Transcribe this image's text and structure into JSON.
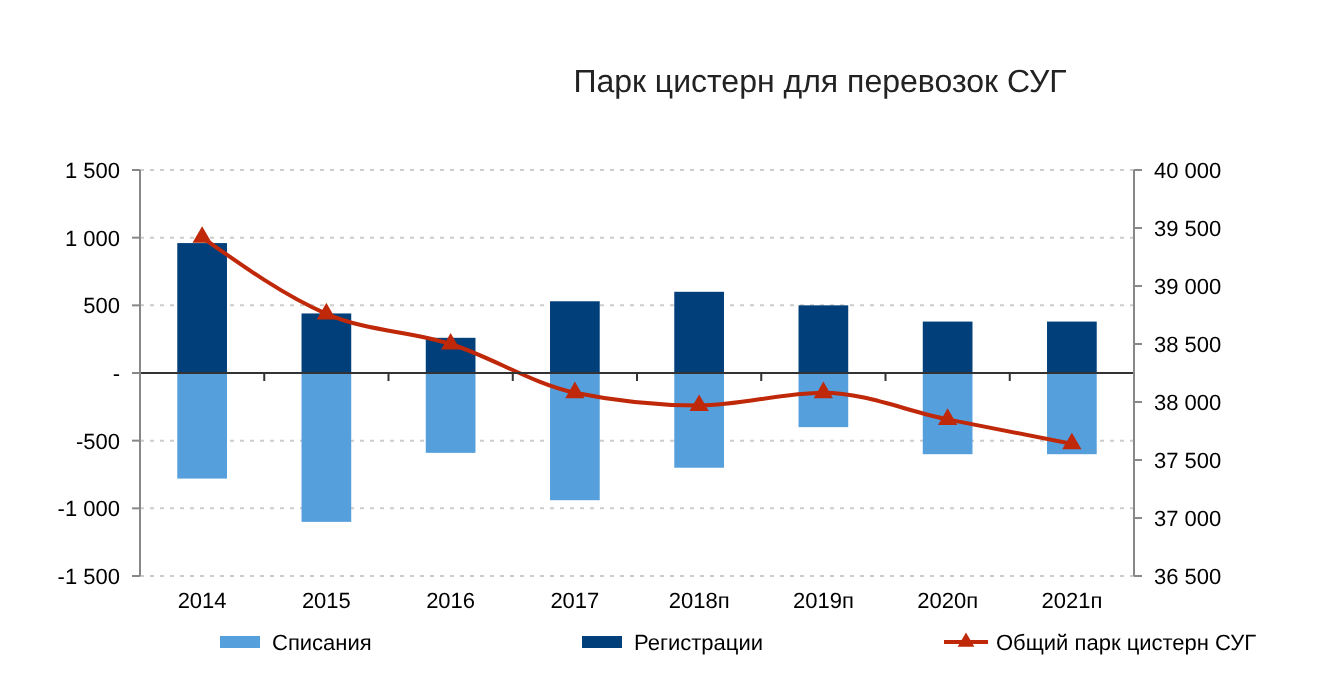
{
  "chart_data": {
    "type": "bar",
    "title": "Парк цистерн для перевозок СУГ",
    "stacked": true,
    "categories": [
      "2014",
      "2015",
      "2016",
      "2017",
      "2018п",
      "2019п",
      "2020п",
      "2021п"
    ],
    "series": [
      {
        "name": "Списания",
        "color": "#559fdc",
        "values": [
          -780,
          -1100,
          -590,
          -940,
          -700,
          -400,
          -600,
          -600
        ]
      },
      {
        "name": "Регистрации",
        "color": "#003f7a",
        "values": [
          960,
          440,
          260,
          530,
          600,
          500,
          380,
          380
        ]
      },
      {
        "name": "Общий парк цистерн СУГ",
        "type": "line",
        "axis": "y2",
        "color": "#c0280a",
        "marker": "triangle",
        "values": [
          39420,
          38760,
          38500,
          38080,
          37970,
          38080,
          37850,
          37640
        ]
      }
    ],
    "ylim": [
      -1500,
      1500
    ],
    "yticks": [
      {
        "value": -1500,
        "label": "-1 500"
      },
      {
        "value": -1000,
        "label": "-1 000"
      },
      -500,
      {
        "value": 0,
        "label": "-"
      },
      500,
      {
        "value": 1000,
        "label": "1 000"
      },
      {
        "value": 1500,
        "label": "1 500"
      }
    ],
    "y2lim": [
      36500,
      40000
    ],
    "y2ticks": [
      {
        "value": 36500,
        "label": "36 500"
      },
      {
        "value": 37000,
        "label": "37 000"
      },
      {
        "value": 37500,
        "label": "37 500"
      },
      {
        "value": 38000,
        "label": "38 000"
      },
      {
        "value": 38500,
        "label": "38 500"
      },
      {
        "value": 39000,
        "label": "39 000"
      },
      {
        "value": 39500,
        "label": "39 500"
      },
      {
        "value": 40000,
        "label": "40 000"
      }
    ],
    "grid": "y",
    "legend": "bottom"
  }
}
